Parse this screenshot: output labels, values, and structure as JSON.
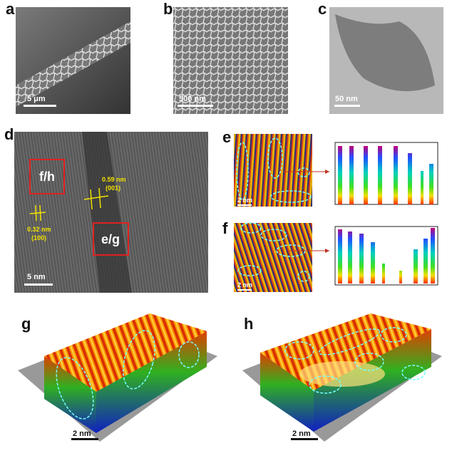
{
  "panels": [
    {
      "label": "a",
      "scale_bar": "5 μm"
    },
    {
      "label": "b",
      "scale_bar": "500 nm"
    },
    {
      "label": "c",
      "scale_bar": "50 nm"
    },
    {
      "label": "d",
      "scale_bar": "5 nm",
      "boxes": [
        "f/h",
        "e/g"
      ],
      "lattice": [
        {
          "spacing": "0.59 nm",
          "plane": "(001)"
        },
        {
          "spacing": "0.32 nm",
          "plane": "(100)"
        }
      ]
    },
    {
      "label": "e",
      "scale_bar": "2 nm"
    },
    {
      "label": "f",
      "scale_bar": "2 nm"
    },
    {
      "label": "g",
      "scale_bar": "2 nm"
    },
    {
      "label": "h",
      "scale_bar": "2 nm"
    }
  ]
}
